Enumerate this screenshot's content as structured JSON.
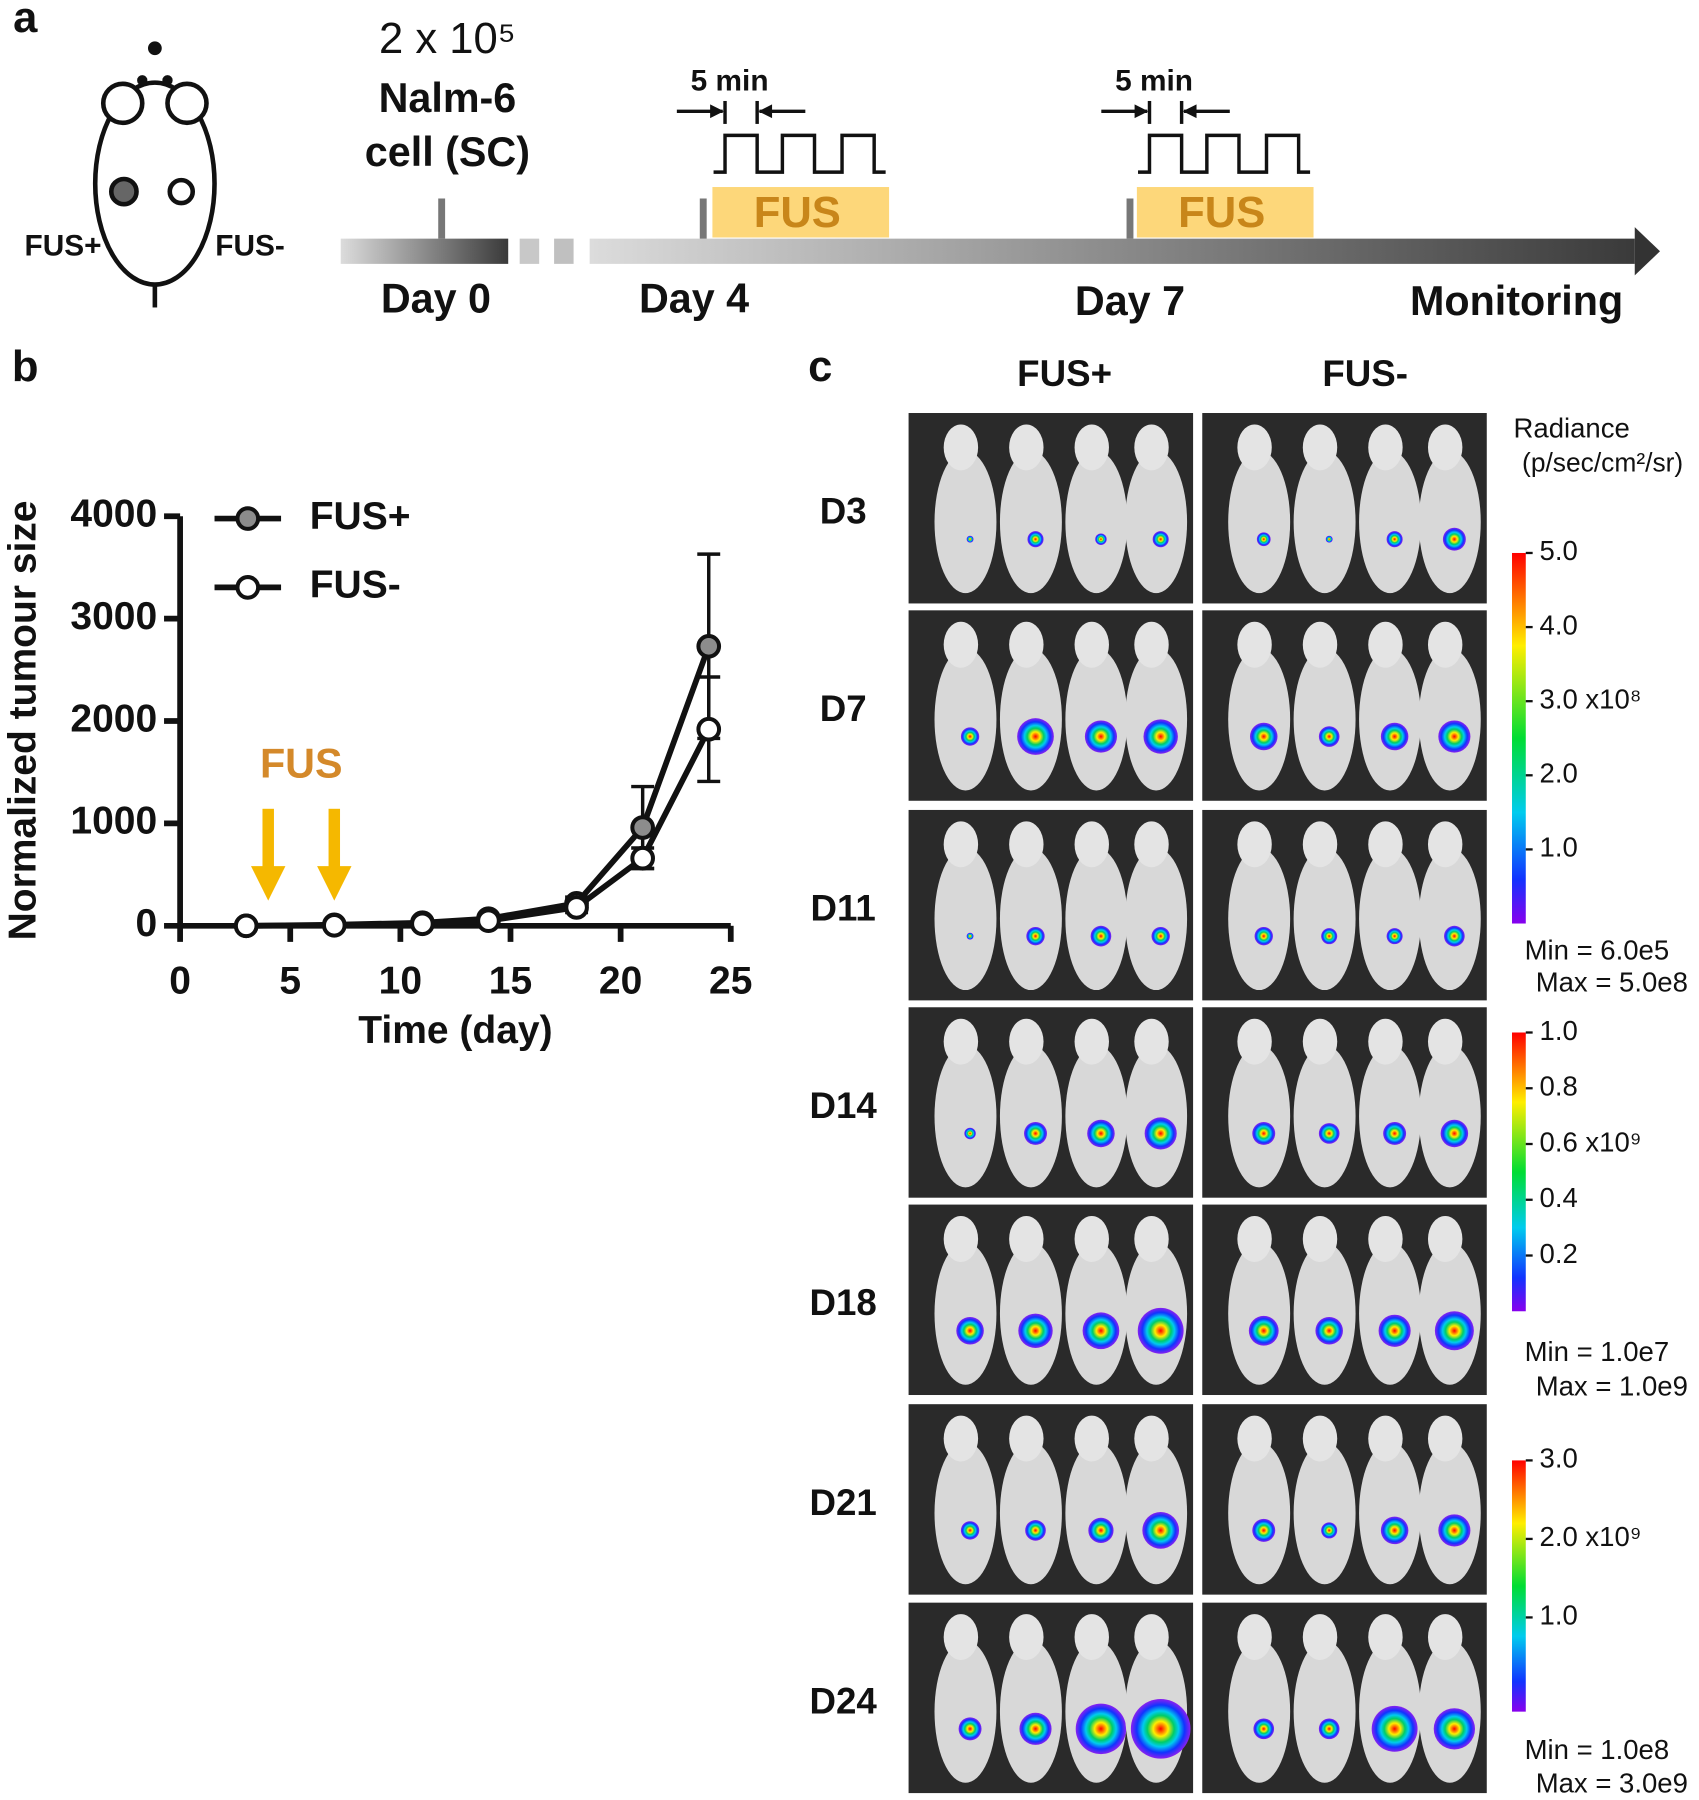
{
  "panel_a": {
    "label": "a",
    "mouse_labels": [
      "FUS+",
      "FUS-"
    ],
    "cells": [
      "2 x 10⁵",
      "Nalm-6",
      "cell (SC)"
    ],
    "pulses": [
      {
        "duration": "5 min",
        "label": "FUS"
      },
      {
        "duration": "5 min",
        "label": "FUS"
      }
    ],
    "timeline": [
      "Day 0",
      "Day 4",
      "Day 7",
      "Monitoring"
    ]
  },
  "chart_data": {
    "type": "line",
    "panel_label": "b",
    "xlabel": "Time (day)",
    "ylabel": "Normalized tumour size",
    "x": [
      3,
      7,
      11,
      14,
      18,
      21,
      24
    ],
    "xlim": [
      0,
      25
    ],
    "xticks": [
      0,
      5,
      10,
      15,
      20,
      25
    ],
    "ylim": [
      0,
      4000
    ],
    "yticks": [
      0,
      1000,
      2000,
      3000,
      4000
    ],
    "series": [
      {
        "name": "FUS+",
        "color": "#8c8c8c",
        "values": [
          0,
          10,
          30,
          70,
          220,
          960,
          2730
        ],
        "errors": [
          0,
          5,
          15,
          30,
          60,
          400,
          900
        ]
      },
      {
        "name": "FUS-",
        "color": "#ffffff",
        "values": [
          0,
          5,
          20,
          50,
          180,
          660,
          1920
        ],
        "errors": [
          0,
          5,
          10,
          25,
          50,
          100,
          510
        ]
      }
    ],
    "annotation": {
      "text": "FUS",
      "x": [
        4,
        7
      ],
      "color": "#f5b800"
    }
  },
  "panel_c": {
    "label": "c",
    "columns": [
      "FUS+",
      "FUS-"
    ],
    "rows": [
      "D3",
      "D7",
      "D11",
      "D14",
      "D18",
      "D21",
      "D24"
    ],
    "colorbar_title": [
      "Radiance",
      "(p/sec/cm²/sr)"
    ],
    "colorbars": [
      {
        "ticks": [
          "5.0",
          "4.0",
          "3.0 x10⁸",
          "2.0",
          "1.0"
        ],
        "min": "Min = 6.0e5",
        "max": "Max = 5.0e8"
      },
      {
        "ticks": [
          "1.0",
          "0.8",
          "0.6 x10⁹",
          "0.4",
          "0.2"
        ],
        "min": "Min = 1.0e7",
        "max": "Max = 1.0e9"
      },
      {
        "ticks": [
          "3.0",
          "2.0 x10⁹",
          "1.0"
        ],
        "min": "Min = 1.0e8",
        "max": "Max = 3.0e9"
      }
    ]
  }
}
